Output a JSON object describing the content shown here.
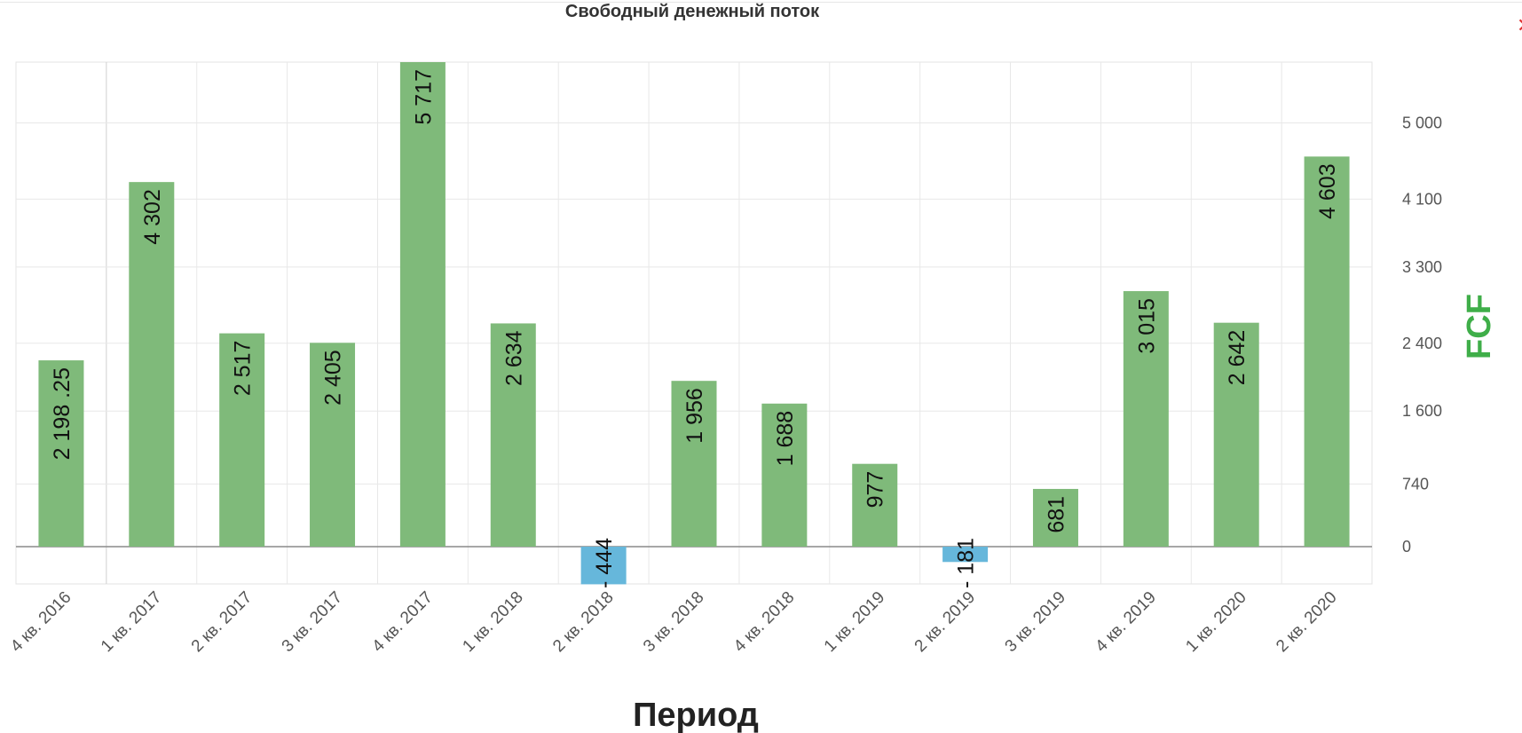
{
  "chart_data": {
    "type": "bar",
    "title": "Свободный денежный поток",
    "xlabel": "Период",
    "ylabel": "FCF",
    "categories": [
      "4 кв. 2016",
      "1 кв. 2017",
      "2 кв. 2017",
      "3 кв. 2017",
      "4 кв. 2017",
      "1 кв. 2018",
      "2 кв. 2018",
      "3 кв. 2018",
      "4 кв. 2018",
      "1 кв. 2019",
      "2 кв. 2019",
      "3 кв. 2019",
      "4 кв. 2019",
      "1 кв. 2020",
      "2 кв. 2020"
    ],
    "values": [
      2198.25,
      4302,
      2517,
      2405,
      5717,
      2634,
      -444,
      1956,
      1688,
      977,
      -181,
      681,
      3015,
      2642,
      4603
    ],
    "value_labels": [
      "2 198 .25",
      "4 302",
      "2 517",
      "2 405",
      "5 717",
      "2 634",
      "- 444",
      "1 956",
      "1 688",
      "977",
      "- 181",
      "681",
      "3 015",
      "2 642",
      "4 603"
    ],
    "y_ticks": [
      0,
      740,
      1600,
      2400,
      3300,
      4100,
      5000
    ],
    "y_tick_labels": [
      "0",
      "740",
      "1 600",
      "2 400",
      "3 300",
      "4 100",
      "5 000"
    ],
    "ylim": [
      -444,
      5717
    ],
    "y_axis_position": "right",
    "grid": true,
    "colors": {
      "positive": "#7fba7a",
      "negative": "#66b7db",
      "ylabel": "#3fae49",
      "zero_line": "#8a8a8a"
    }
  }
}
